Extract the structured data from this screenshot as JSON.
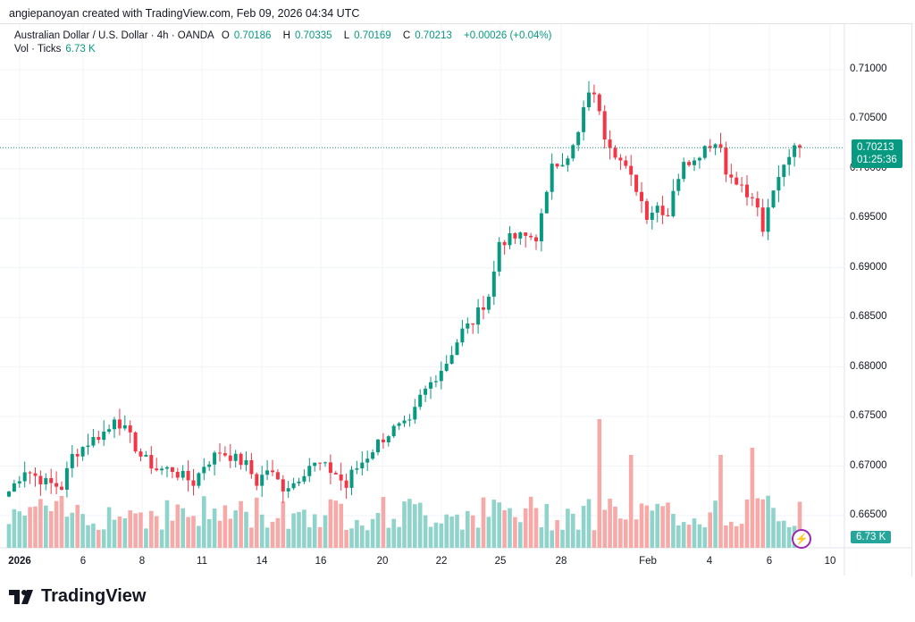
{
  "credit": "angiepanoyan created with TradingView.com, Feb 09, 2026 04:34 UTC",
  "legend": {
    "symbol": "Australian Dollar / U.S. Dollar · 4h · OANDA",
    "o_label": "O",
    "o": "0.70186",
    "h_label": "H",
    "h": "0.70335",
    "l_label": "L",
    "l": "0.70169",
    "c_label": "C",
    "c": "0.70213",
    "change": "+0.00026 (+0.04%)",
    "vol_label": "Vol · Ticks",
    "vol": "6.73 K"
  },
  "last_price": "0.70213",
  "countdown": "01:25:36",
  "volume_badge": "6.73 K",
  "price_axis": [
    "0.71000",
    "0.70500",
    "0.70000",
    "0.69500",
    "0.69000",
    "0.68500",
    "0.68000",
    "0.67500",
    "0.67000",
    "0.66500"
  ],
  "time_axis": [
    "2026",
    "6",
    "8",
    "11",
    "14",
    "16",
    "20",
    "22",
    "25",
    "28",
    "Feb",
    "4",
    "6",
    "10"
  ],
  "logo": "TradingView",
  "colors": {
    "up": "#089981",
    "down": "#f23645",
    "vol_up": "#8fd3cb",
    "vol_down": "#f7a9a7"
  },
  "chart_data": {
    "type": "candlestick",
    "symbol": "AUDUSD",
    "interval": "4h",
    "ylim": [
      0.6635,
      0.7115
    ],
    "close_keypoints": [
      [
        0,
        0.66744
      ],
      [
        3,
        0.66968
      ],
      [
        7,
        0.66833
      ],
      [
        10,
        0.66788
      ],
      [
        12,
        0.67103
      ],
      [
        15,
        0.67239
      ],
      [
        19,
        0.67374
      ],
      [
        20,
        0.67509
      ],
      [
        23,
        0.67284
      ],
      [
        25,
        0.67103
      ],
      [
        28,
        0.66968
      ],
      [
        31,
        0.66968
      ],
      [
        32,
        0.66923
      ],
      [
        35,
        0.66833
      ],
      [
        37,
        0.67013
      ],
      [
        40,
        0.67148
      ],
      [
        42,
        0.67103
      ],
      [
        45,
        0.67013
      ],
      [
        47,
        0.66833
      ],
      [
        49,
        0.66968
      ],
      [
        52,
        0.66788
      ],
      [
        54,
        0.66833
      ],
      [
        57,
        0.67013
      ],
      [
        59,
        0.67013
      ],
      [
        62,
        0.66923
      ],
      [
        64,
        0.66788
      ],
      [
        65,
        0.66923
      ],
      [
        68,
        0.67103
      ],
      [
        70,
        0.67239
      ],
      [
        73,
        0.67374
      ],
      [
        76,
        0.67419
      ],
      [
        78,
        0.6769
      ],
      [
        81,
        0.67915
      ],
      [
        83,
        0.6805
      ],
      [
        86,
        0.68366
      ],
      [
        88,
        0.68456
      ],
      [
        91,
        0.68727
      ],
      [
        92,
        0.68953
      ],
      [
        93,
        0.69268
      ],
      [
        97,
        0.69313
      ],
      [
        100,
        0.69313
      ],
      [
        102,
        0.69719
      ],
      [
        103,
        0.7008
      ],
      [
        106,
        0.7008
      ],
      [
        108,
        0.70351
      ],
      [
        110,
        0.70802
      ],
      [
        112,
        0.70621
      ],
      [
        113,
        0.70351
      ],
      [
        115,
        0.7017
      ],
      [
        117,
        0.6999
      ],
      [
        119,
        0.69809
      ],
      [
        121,
        0.69539
      ],
      [
        123,
        0.69629
      ],
      [
        125,
        0.69539
      ],
      [
        126,
        0.69809
      ],
      [
        128,
        0.70035
      ],
      [
        130,
        0.70125
      ],
      [
        133,
        0.7026
      ],
      [
        135,
        0.7026
      ],
      [
        136,
        0.69945
      ],
      [
        138,
        0.699
      ],
      [
        140,
        0.69719
      ],
      [
        142,
        0.69629
      ],
      [
        143,
        0.69313
      ],
      [
        144,
        0.69584
      ],
      [
        146,
        0.69945
      ],
      [
        148,
        0.7017
      ],
      [
        150,
        0.70213
      ]
    ],
    "volume_spikes": [
      [
        112,
        0.9
      ],
      [
        118,
        0.65
      ],
      [
        135,
        0.65
      ],
      [
        141,
        0.7
      ]
    ]
  }
}
